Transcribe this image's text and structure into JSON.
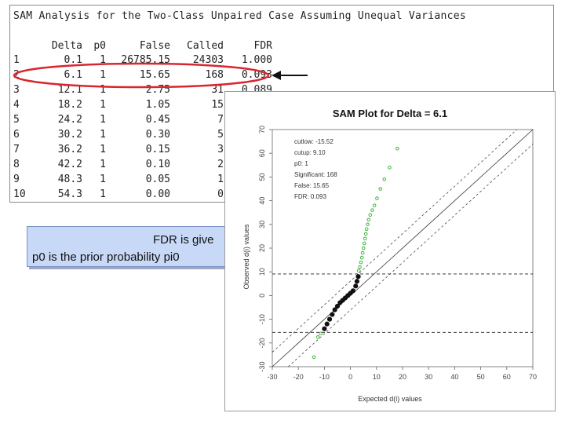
{
  "table": {
    "title": "SAM Analysis for the Two-Class Unpaired Case Assuming Unequal Variances",
    "headers": [
      "Delta",
      "p0",
      "False",
      "Called",
      "FDR"
    ],
    "rows": [
      {
        "idx": "1",
        "delta": "0.1",
        "p0": "1",
        "false": "26785.15",
        "called": "24303",
        "fdr": "1.000"
      },
      {
        "idx": "2",
        "delta": "6.1",
        "p0": "1",
        "false": "15.65",
        "called": "168",
        "fdr": "0.093"
      },
      {
        "idx": "3",
        "delta": "12.1",
        "p0": "1",
        "false": "2.75",
        "called": "31",
        "fdr": "0.089"
      },
      {
        "idx": "4",
        "delta": "18.2",
        "p0": "1",
        "false": "1.05",
        "called": "15",
        "fdr": ""
      },
      {
        "idx": "5",
        "delta": "24.2",
        "p0": "1",
        "false": "0.45",
        "called": "7",
        "fdr": ""
      },
      {
        "idx": "6",
        "delta": "30.2",
        "p0": "1",
        "false": "0.30",
        "called": "5",
        "fdr": ""
      },
      {
        "idx": "7",
        "delta": "36.2",
        "p0": "1",
        "false": "0.15",
        "called": "3",
        "fdr": ""
      },
      {
        "idx": "8",
        "delta": "42.2",
        "p0": "1",
        "false": "0.10",
        "called": "2",
        "fdr": ""
      },
      {
        "idx": "9",
        "delta": "48.3",
        "p0": "1",
        "false": "0.05",
        "called": "1",
        "fdr": ""
      },
      {
        "idx": "10",
        "delta": "54.3",
        "p0": "1",
        "false": "0.00",
        "called": "0",
        "fdr": ""
      }
    ]
  },
  "callout": {
    "line1": "FDR is give",
    "line2": "p0 is  the prior probability pi0"
  },
  "colors": {
    "highlight_ellipse": "#d9262e",
    "callout_bg": "#c8d8f7",
    "significant_points": "#3cb43c",
    "null_points": "#111111"
  },
  "plot": {
    "title": "SAM Plot for Delta = 6.1",
    "xlabel": "Expected d(i) values",
    "ylabel": "Observed d(i) values",
    "legend": {
      "cutlow": "cutlow: -15.52",
      "cutup": "cutup: 9.10",
      "p0": "p0: 1",
      "significant": "Significant: 168",
      "false": "False: 15.65",
      "fdr": "FDR: 0.093"
    },
    "chart_data": {
      "type": "scatter",
      "title": "SAM Plot for Delta = 6.1",
      "xlabel": "Expected d(i) values",
      "ylabel": "Observed d(i) values",
      "xlim": [
        -30,
        70
      ],
      "ylim": [
        -30,
        70
      ],
      "x_ticks": [
        "-30",
        "-20",
        "-10",
        "0",
        "10",
        "20",
        "30",
        "40",
        "50",
        "60",
        "70"
      ],
      "y_ticks": [
        "-30",
        "-20",
        "-10",
        "0",
        "10",
        "20",
        "30",
        "40",
        "50",
        "60",
        "70"
      ],
      "cutup_line": 9.1,
      "cutlow_line": -15.52,
      "delta": 6.1,
      "series": [
        {
          "name": "Significant",
          "color": "#3cb43c",
          "x": [
            3.2,
            3.6,
            4.0,
            4.4,
            4.7,
            5.0,
            5.3,
            5.6,
            5.9,
            6.2,
            6.6,
            7.0,
            7.6,
            8.4,
            9.2,
            10.2,
            11.5,
            13.0,
            15.0,
            18.0,
            -11.5,
            -12.5,
            -14.0
          ],
          "y": [
            10.5,
            12,
            14,
            16,
            18,
            20,
            22,
            24,
            26,
            28,
            30,
            32,
            34,
            36,
            38,
            41,
            45,
            49,
            54,
            62,
            -16,
            -17.5,
            -26
          ]
        },
        {
          "name": "Not significant",
          "color": "#111111",
          "x": [
            -10,
            -9,
            -8,
            -7,
            -6,
            -5,
            -4,
            -3,
            -2,
            -1,
            0,
            1,
            2,
            2.5,
            3
          ],
          "y": [
            -14,
            -12,
            -10,
            -8,
            -6,
            -4.5,
            -3,
            -2,
            -1,
            0,
            1,
            2,
            4,
            6,
            8
          ]
        }
      ]
    }
  }
}
